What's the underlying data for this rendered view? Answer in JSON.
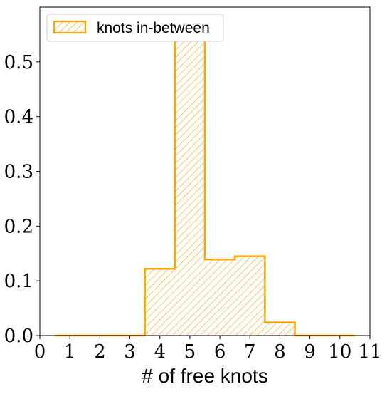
{
  "chart_data": {
    "type": "bar",
    "histogram": true,
    "bin_centers": [
      1,
      2,
      3,
      4,
      5,
      6,
      7,
      8,
      9,
      10
    ],
    "bin_edges": [
      0.5,
      1.5,
      2.5,
      3.5,
      4.5,
      5.5,
      6.5,
      7.5,
      8.5,
      9.5,
      10.5
    ],
    "series": [
      {
        "name": "knots in-between",
        "values": [
          0.0,
          0.0,
          0.0,
          0.122,
          0.575,
          0.139,
          0.145,
          0.024,
          0.0,
          0.0
        ],
        "color": "#FFA500",
        "fill": "hatched",
        "style": "step-outline"
      }
    ],
    "xlabel": "# of free knots",
    "ylabel": "",
    "xlim": [
      0,
      11
    ],
    "ylim": [
      0,
      0.6
    ],
    "xticks": [
      "0",
      "1",
      "2",
      "3",
      "4",
      "5",
      "6",
      "7",
      "8",
      "9",
      "10",
      "11"
    ],
    "yticks": [
      "0.0",
      "0.1",
      "0.2",
      "0.3",
      "0.4",
      "0.5"
    ],
    "grid": false,
    "legend_position": "top-left"
  }
}
